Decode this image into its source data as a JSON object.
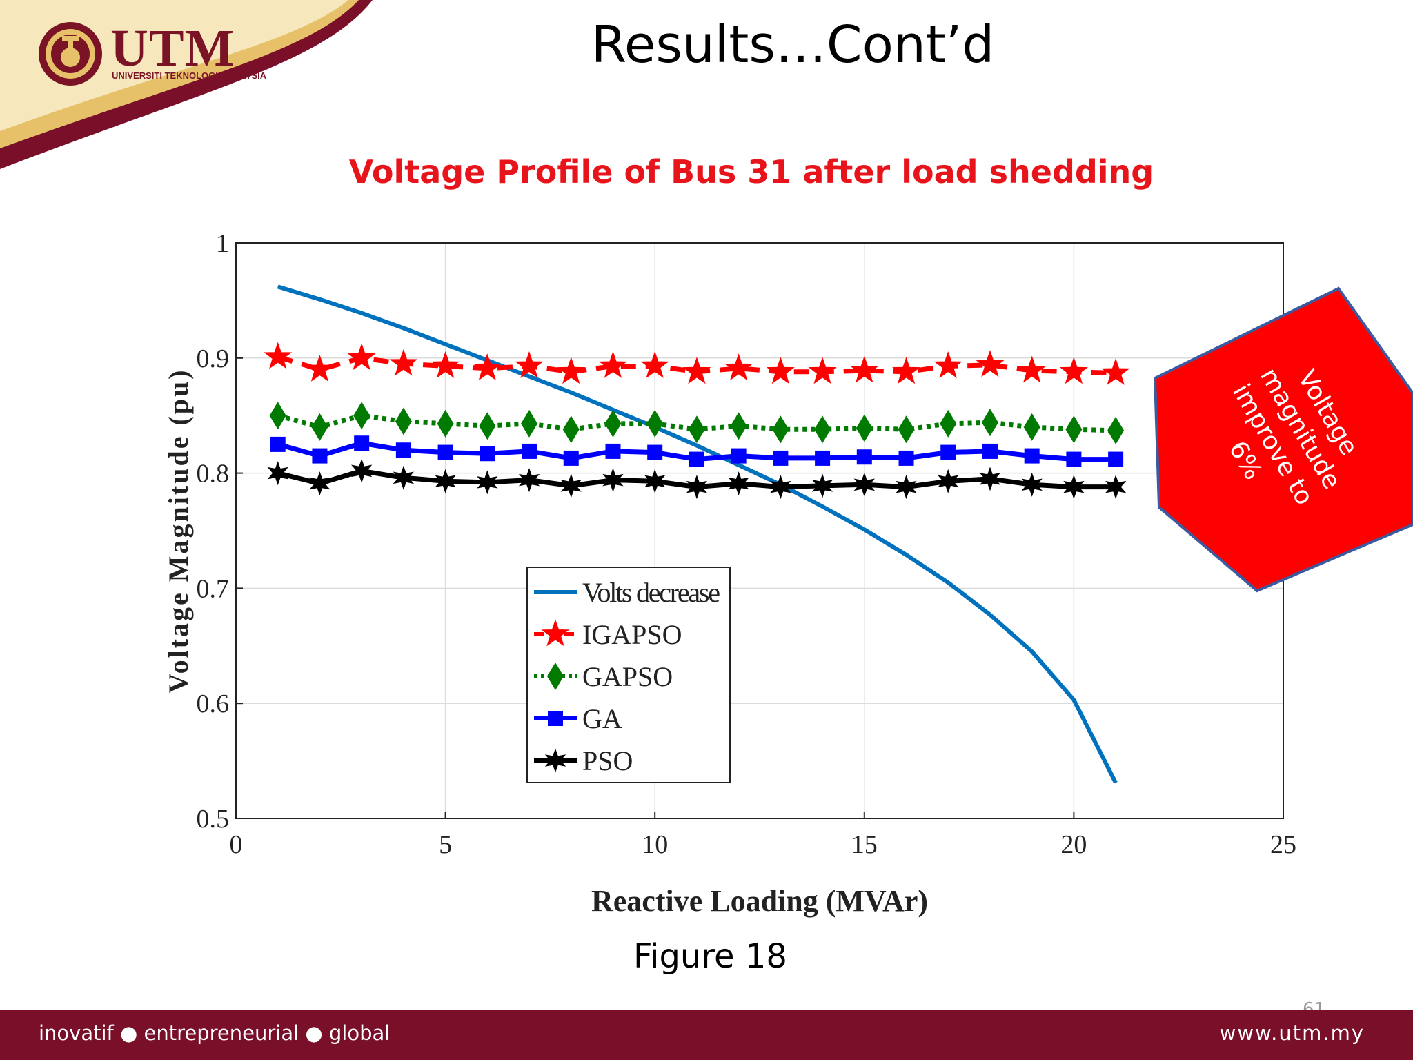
{
  "header": {
    "logo_text": "UTM",
    "logo_subtext": "UNIVERSITI TEKNOLOGI MALAYSIA",
    "title": "Results…Cont’d"
  },
  "callout": {
    "lines": [
      "Voltage",
      "magnitude",
      "improve to",
      "6%"
    ],
    "fill": "#ff0000",
    "border": "#3b5aa0"
  },
  "caption": "Figure 18",
  "footer": {
    "tagline": "inovatif ● entrepreneurial ● global",
    "website": "www.utm.my",
    "page_number": "61"
  },
  "colors": {
    "brand_maroon": "#7a0f2a",
    "heading_red": "#e8141c",
    "gold": "#e8c66a"
  },
  "chart_data": {
    "type": "line",
    "title": "Voltage Profile of Bus 31 after load shedding",
    "xlabel": "Reactive Loading (MVAr)",
    "ylabel": "Voltage Magnitude (pu)",
    "xlim": [
      0,
      25
    ],
    "ylim": [
      0.5,
      1
    ],
    "xticks": [
      0,
      5,
      10,
      15,
      20,
      25
    ],
    "yticks": [
      0.5,
      0.6,
      0.7,
      0.8,
      0.9,
      1
    ],
    "ytick_labels": [
      "0.5",
      "0.6",
      "0.7",
      "0.8",
      "0.9",
      "1"
    ],
    "grid": true,
    "legend_position": "lower-center",
    "x": [
      1,
      2,
      3,
      4,
      5,
      6,
      7,
      8,
      9,
      10,
      11,
      12,
      13,
      14,
      15,
      16,
      17,
      18,
      19,
      20,
      21
    ],
    "series": [
      {
        "name": "Volts decrease",
        "color": "#0072bd",
        "style": "solid",
        "marker": "none",
        "values": [
          0.962,
          0.951,
          0.939,
          0.926,
          0.912,
          0.898,
          0.884,
          0.87,
          0.855,
          0.84,
          0.824,
          0.807,
          0.79,
          0.771,
          0.751,
          0.729,
          0.705,
          0.677,
          0.645,
          0.603,
          0.531
        ]
      },
      {
        "name": "IGAPSO",
        "color": "#ff0000",
        "style": "dashed",
        "marker": "star",
        "values": [
          0.901,
          0.89,
          0.9,
          0.895,
          0.893,
          0.891,
          0.893,
          0.888,
          0.893,
          0.893,
          0.888,
          0.891,
          0.888,
          0.888,
          0.889,
          0.888,
          0.893,
          0.894,
          0.889,
          0.888,
          0.887
        ]
      },
      {
        "name": "GAPSO",
        "color": "#007a00",
        "style": "dotted",
        "marker": "diamond",
        "values": [
          0.85,
          0.84,
          0.85,
          0.845,
          0.843,
          0.841,
          0.843,
          0.838,
          0.843,
          0.843,
          0.838,
          0.841,
          0.838,
          0.838,
          0.839,
          0.838,
          0.843,
          0.844,
          0.84,
          0.838,
          0.837
        ]
      },
      {
        "name": "GA",
        "color": "#0000ff",
        "style": "solid",
        "marker": "square",
        "values": [
          0.825,
          0.815,
          0.826,
          0.82,
          0.818,
          0.817,
          0.819,
          0.813,
          0.819,
          0.818,
          0.812,
          0.815,
          0.813,
          0.813,
          0.814,
          0.813,
          0.818,
          0.819,
          0.815,
          0.812,
          0.812
        ]
      },
      {
        "name": "PSO",
        "color": "#000000",
        "style": "solid",
        "marker": "hexstar",
        "values": [
          0.8,
          0.791,
          0.802,
          0.796,
          0.793,
          0.792,
          0.794,
          0.789,
          0.794,
          0.793,
          0.788,
          0.791,
          0.788,
          0.789,
          0.79,
          0.788,
          0.793,
          0.795,
          0.79,
          0.788,
          0.788
        ]
      }
    ]
  }
}
